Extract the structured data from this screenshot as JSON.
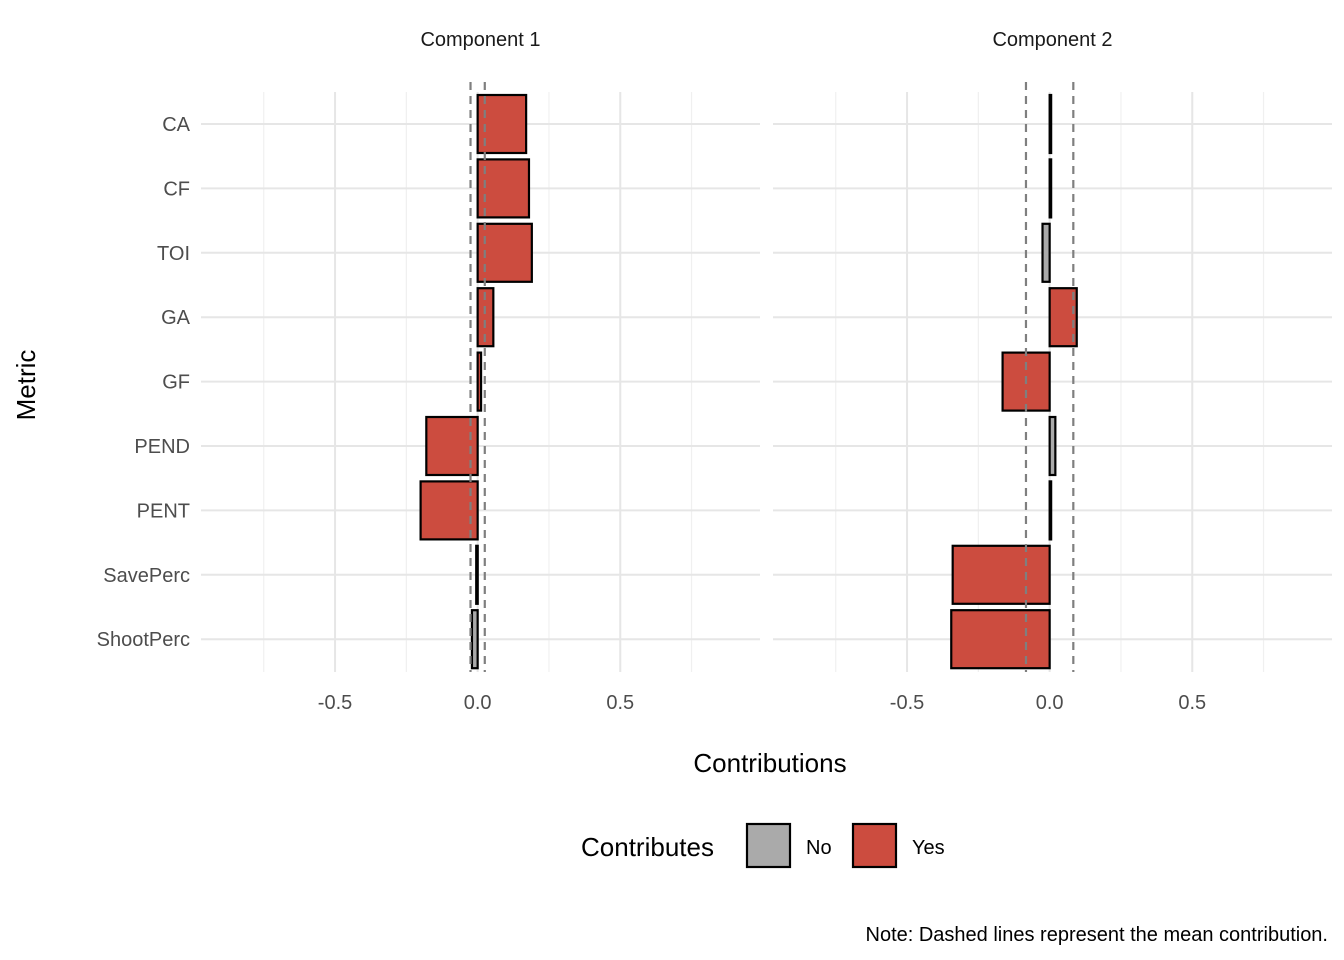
{
  "chart_data": {
    "type": "bar",
    "orientation": "horizontal",
    "ylabel": "Metric",
    "xlabel": "Contributions",
    "categories": [
      "CA",
      "CF",
      "TOI",
      "GA",
      "GF",
      "PEND",
      "PENT",
      "SavePerc",
      "ShootPerc"
    ],
    "xlim": [
      -0.97,
      0.99
    ],
    "x_ticks": [
      -0.5,
      0.0,
      0.5
    ],
    "x_tick_labels": [
      "-0.5",
      "0.0",
      "0.5"
    ],
    "grid": true,
    "panels": [
      {
        "title": "Component 1",
        "values": [
          0.17,
          0.18,
          0.19,
          0.055,
          0.012,
          -0.18,
          -0.2,
          -0.005,
          -0.02
        ],
        "contributes": [
          "Yes",
          "Yes",
          "Yes",
          "Yes",
          "Yes",
          "Yes",
          "Yes",
          "Yes",
          "No"
        ],
        "mean_lines": [
          -0.025,
          0.025
        ]
      },
      {
        "title": "Component 2",
        "values": [
          0.004,
          0.002,
          -0.025,
          0.095,
          -0.165,
          0.02,
          0.003,
          -0.34,
          -0.345
        ],
        "contributes": [
          "Yes",
          "Yes",
          "No",
          "Yes",
          "Yes",
          "No",
          "Yes",
          "Yes",
          "Yes"
        ],
        "mean_lines": [
          -0.083,
          0.083
        ]
      }
    ],
    "legend": {
      "title": "Contributes",
      "position": "bottom",
      "entries": [
        {
          "label": "No",
          "color": "#aaaaaa"
        },
        {
          "label": "Yes",
          "color": "#cc4c3f"
        }
      ]
    },
    "note": "Note: Dashed lines represent the mean contribution."
  },
  "colors": {
    "yes": "#cc4c3f",
    "no": "#aaaaaa",
    "grid_major": "#e6e6e6",
    "grid_minor": "#f0f0f0",
    "mean_line": "#7f7f7f",
    "bar_outline": "#000000"
  }
}
